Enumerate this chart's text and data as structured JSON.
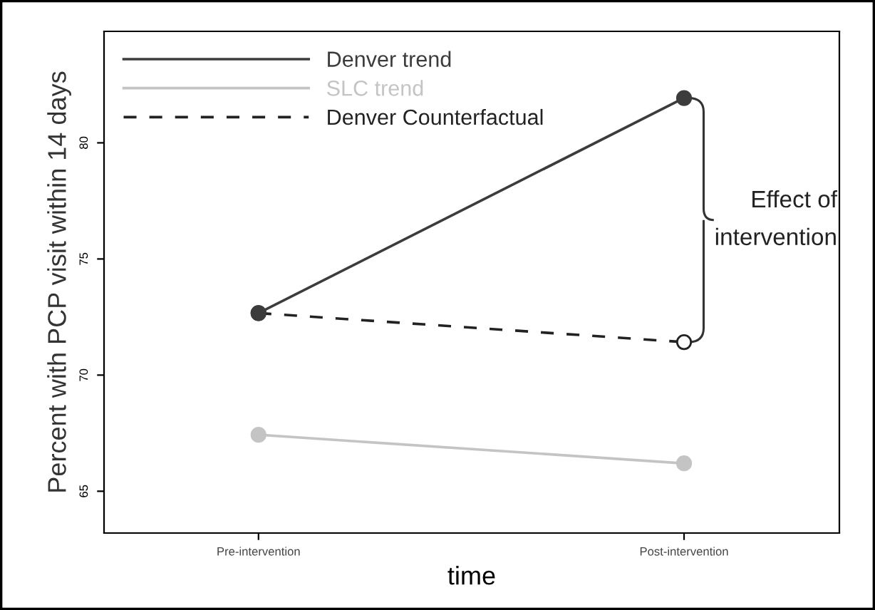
{
  "chart_data": {
    "type": "line",
    "xlabel": "time",
    "ylabel": "Percent with PCP visit within 14 days",
    "categories": [
      "Pre-intervention",
      "Post-intervention"
    ],
    "series": [
      {
        "name": "Denver trend",
        "color": "#3c3c3c",
        "values": [
          72.67,
          81.93
        ],
        "line_style": "solid",
        "marker": "circle"
      },
      {
        "name": "SLC trend",
        "color": "#c4c4c4",
        "values": [
          67.43,
          66.2
        ],
        "line_style": "solid",
        "marker": "circle"
      },
      {
        "name": "Denver Counterfactual",
        "color": "#222222",
        "values": [
          72.67,
          71.42
        ],
        "line_style": "dashed",
        "marker": "circle"
      }
    ],
    "ylim": [
      63.2,
      84.8
    ],
    "yticks": [
      65,
      70,
      75,
      80
    ],
    "grid": false,
    "legend": "top left",
    "annotations": [
      {
        "text": "Effect of\nintervention",
        "x": "Post-intervention",
        "y": 81.93
      }
    ]
  }
}
